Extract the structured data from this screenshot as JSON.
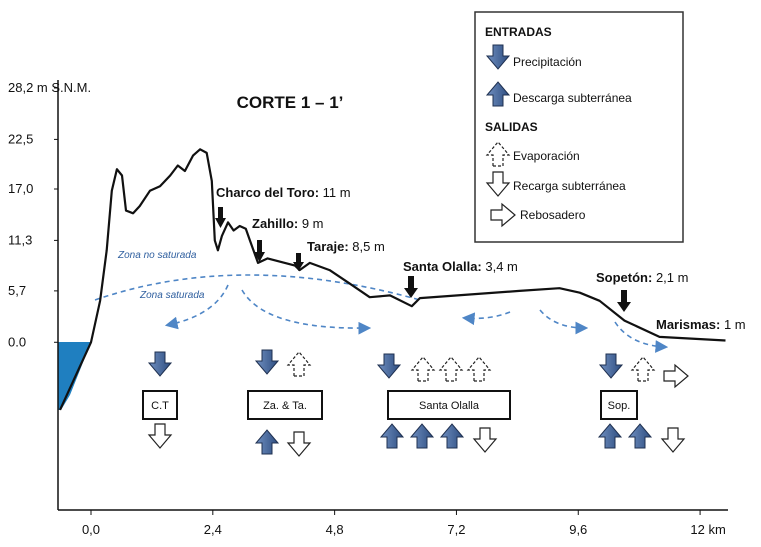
{
  "title": "CORTE 1 – 1’",
  "axes": {
    "xlim": [
      -0.65,
      12.55
    ],
    "ylim": [
      -18.6,
      28.2
    ],
    "xticks": [
      {
        "value": 0,
        "label": "0,0"
      },
      {
        "value": 2.4,
        "label": "2,4"
      },
      {
        "value": 4.8,
        "label": "4,8"
      },
      {
        "value": 7.2,
        "label": "7,2"
      },
      {
        "value": 9.6,
        "label": "9,6"
      },
      {
        "value": 12,
        "label": "12 km"
      }
    ],
    "yticks": [
      {
        "value": 0,
        "label": "0.0"
      },
      {
        "value": 5.7,
        "label": "5,7"
      },
      {
        "value": 11.3,
        "label": "11,3"
      },
      {
        "value": 17,
        "label": "17,0"
      },
      {
        "value": 22.5,
        "label": "22,5"
      },
      {
        "value": 28.2,
        "label": "28,2 m S.N.M."
      }
    ]
  },
  "profile": {
    "x": [
      -0.61,
      0,
      0.18,
      0.31,
      0.41,
      0.51,
      0.61,
      0.69,
      0.83,
      0.96,
      1.16,
      1.36,
      1.56,
      1.71,
      1.85,
      2.01,
      2.15,
      2.28,
      2.38,
      2.44,
      2.5,
      2.58,
      2.7,
      2.81,
      2.93,
      3.05,
      3.13,
      3.29,
      3.48,
      3.82,
      4.02,
      4.11,
      4.31,
      4.7,
      5.1,
      5.49,
      5.89,
      6.32,
      6.48,
      7.46,
      8.44,
      9.23,
      9.63,
      10.02,
      10.51,
      11.2,
      12.5
    ],
    "y": [
      -7.5,
      0,
      4.6,
      10.2,
      16.8,
      19.2,
      18.5,
      14.6,
      14.3,
      15.1,
      16.8,
      17.3,
      18.5,
      19.6,
      19.0,
      20.7,
      21.4,
      21.0,
      17.9,
      11.3,
      10.2,
      11.8,
      13.3,
      12.4,
      12.9,
      12.6,
      11.3,
      8.8,
      9.3,
      8.8,
      8.5,
      8.0,
      8.8,
      8.0,
      6.5,
      5.0,
      5.2,
      4.0,
      4.9,
      5.3,
      5.7,
      6.0,
      5.5,
      4.6,
      2.4,
      0.6,
      0.2
    ]
  },
  "sites": [
    {
      "name": "Charco del Toro:",
      "elevation": "11 m"
    },
    {
      "name": "Zahillo:",
      "elevation": "9 m"
    },
    {
      "name": "Taraje:",
      "elevation": "8,5 m"
    },
    {
      "name": "Santa Olalla:",
      "elevation": "3,4 m"
    },
    {
      "name": "Sopetón:",
      "elevation": "2,1 m"
    },
    {
      "name": "Marismas:",
      "elevation": "1 m"
    }
  ],
  "zones": [
    "Zona no saturada",
    "Zona saturada"
  ],
  "legend": {
    "inputs_title": "ENTRADAS",
    "inputs": [
      "Precipitación",
      "Descarga subterránea"
    ],
    "outputs_title": "SALIDAS",
    "outputs": [
      "Evaporación",
      "Recarga subterránea",
      "Rebosadero"
    ]
  },
  "boxes": [
    "C.T",
    "Za. & Ta.",
    "Santa Olalla",
    "Sop."
  ]
}
